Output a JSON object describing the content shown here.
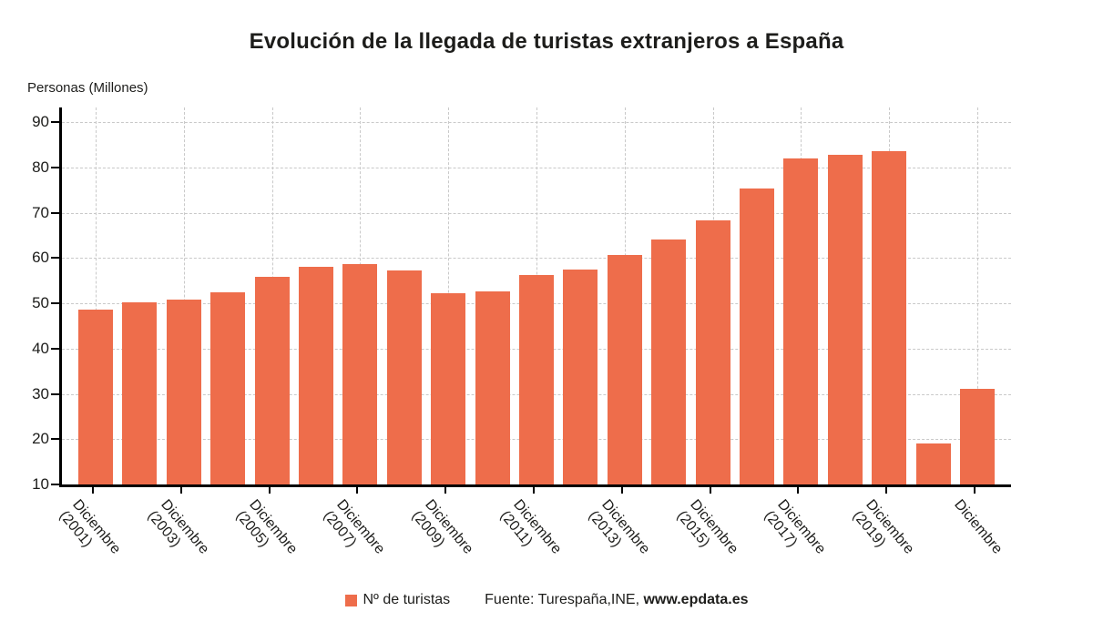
{
  "title": "Evolución de la llegada de turistas extranjeros a España",
  "y_axis_title": "Personas (Millones)",
  "legend": {
    "label": "Nº de turistas"
  },
  "source": {
    "prefix": "Fuente: Turespaña,INE, ",
    "bold_link": "www.epdata.es"
  },
  "colors": {
    "bar": "#ee6d4b",
    "axis": "#000000",
    "gridline": "#c9c9c9",
    "text": "#1d1d1b",
    "background": "#ffffff"
  },
  "chart_data": {
    "type": "bar",
    "title": "Evolución de la llegada de turistas extranjeros a España",
    "ylabel": "Personas (Millones)",
    "series_name": "Nº de turistas",
    "values": [
      48.6,
      50.3,
      50.9,
      52.4,
      55.9,
      58.0,
      58.7,
      57.2,
      52.2,
      52.7,
      56.2,
      57.5,
      60.7,
      64.0,
      68.2,
      75.3,
      81.9,
      82.8,
      83.5,
      19.0,
      31.2
    ],
    "labeled_bar_indices": [
      0,
      2,
      4,
      6,
      8,
      10,
      12,
      14,
      16,
      18,
      20
    ],
    "x_tick_labels": [
      [
        "Diciembre",
        "(2001)"
      ],
      [
        "Diciembre",
        "(2003)"
      ],
      [
        "Diciembre",
        "(2005)"
      ],
      [
        "Diciembre",
        "(2007)"
      ],
      [
        "Diciembre",
        "(2009)"
      ],
      [
        "Diciembre",
        "(2011)"
      ],
      [
        "Diciembre",
        "(2013)"
      ],
      [
        "Diciembre",
        "(2015)"
      ],
      [
        "Diciembre",
        "(2017)"
      ],
      [
        "Diciembre",
        "(2019)"
      ],
      [
        "Diciembre",
        ""
      ]
    ],
    "y_ticks": [
      10,
      20,
      30,
      40,
      50,
      60,
      70,
      80,
      90
    ],
    "y_min": 10,
    "y_max": 93,
    "grid": "dashed horizontal and vertical",
    "legend_position": "bottom-center"
  }
}
